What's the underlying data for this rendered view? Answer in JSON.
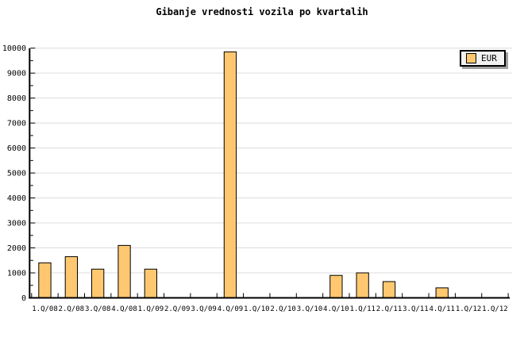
{
  "chart_data": {
    "type": "bar",
    "title": "Gibanje vrednosti vozila po kvartalih",
    "categories": [
      "1.Q/08",
      "2.Q/08",
      "3.Q/08",
      "4.Q/08",
      "1.Q/09",
      "2.Q/09",
      "3.Q/09",
      "4.Q/09",
      "1.Q/10",
      "2.Q/10",
      "3.Q/10",
      "4.Q/10",
      "1.Q/11",
      "2.Q/11",
      "3.Q/11",
      "4.Q/11",
      "1.Q/12",
      "1.Q/12"
    ],
    "series": [
      {
        "name": "EUR",
        "values": [
          1400,
          1650,
          1150,
          2100,
          1150,
          0,
          0,
          9850,
          0,
          0,
          0,
          900,
          1000,
          650,
          0,
          400,
          0,
          0
        ]
      }
    ],
    "xlabel": "",
    "ylabel": "",
    "ylim": [
      0,
      10000
    ],
    "y_tick_step": 1000,
    "y_minor_tick_step": 500,
    "grid": "horizontal-major",
    "legend": {
      "label": "EUR",
      "position": "top-right"
    },
    "colors": {
      "bar_fill": "#FFC870",
      "bar_border": "#000000",
      "grid": "#DCDCDC",
      "axis": "#000000",
      "text": "#000000",
      "legend_bg": "#F2F2F2",
      "legend_border": "#000000",
      "legend_shadow": "#A0A0A0",
      "background": "#FFFFFF"
    }
  }
}
